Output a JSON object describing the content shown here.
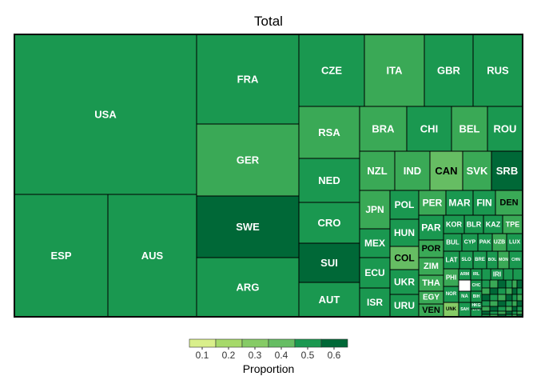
{
  "chart_data": {
    "type": "treemap",
    "title": "Total",
    "legend": {
      "title": "Proportion",
      "ticks": [
        "0.1",
        "0.2",
        "0.3",
        "0.4",
        "0.5",
        "0.6"
      ],
      "bin_colors": [
        "#d9ef8b",
        "#a6d96a",
        "#86cb66",
        "#66bd63",
        "#3aa956",
        "#1a9850",
        "#006837"
      ]
    },
    "cells": [
      {
        "label": "USA",
        "proportion": 0.56
      },
      {
        "label": "ESP",
        "proportion": 0.55
      },
      {
        "label": "AUS",
        "proportion": 0.5
      },
      {
        "label": "FRA",
        "proportion": 0.5
      },
      {
        "label": "GER",
        "proportion": 0.46
      },
      {
        "label": "SWE",
        "proportion": 0.6
      },
      {
        "label": "ARG",
        "proportion": 0.55
      },
      {
        "label": "CZE",
        "proportion": 0.55
      },
      {
        "label": "ITA",
        "proportion": 0.4
      },
      {
        "label": "GBR",
        "proportion": 0.5
      },
      {
        "label": "RUS",
        "proportion": 0.55
      },
      {
        "label": "RSA",
        "proportion": 0.45
      },
      {
        "label": "NED",
        "proportion": 0.52
      },
      {
        "label": "CRO",
        "proportion": 0.58
      },
      {
        "label": "SUI",
        "proportion": 0.63
      },
      {
        "label": "AUT",
        "proportion": 0.5
      },
      {
        "label": "BRA",
        "proportion": 0.48
      },
      {
        "label": "CHI",
        "proportion": 0.56
      },
      {
        "label": "BEL",
        "proportion": 0.42
      },
      {
        "label": "ROU",
        "proportion": 0.5
      },
      {
        "label": "NZL",
        "proportion": 0.48
      },
      {
        "label": "IND",
        "proportion": 0.45
      },
      {
        "label": "CAN",
        "proportion": 0.38
      },
      {
        "label": "SVK",
        "proportion": 0.48
      },
      {
        "label": "SRB",
        "proportion": 0.64
      },
      {
        "label": "JPN",
        "proportion": 0.46
      },
      {
        "label": "POL",
        "proportion": 0.55
      },
      {
        "label": "PER",
        "proportion": 0.45
      },
      {
        "label": "MAR",
        "proportion": 0.5
      },
      {
        "label": "FIN",
        "proportion": 0.5
      },
      {
        "label": "DEN",
        "proportion": 0.4
      },
      {
        "label": "MEX",
        "proportion": 0.52
      },
      {
        "label": "HUN",
        "proportion": 0.55
      },
      {
        "label": "PAR",
        "proportion": 0.58
      },
      {
        "label": "KOR",
        "proportion": 0.5
      },
      {
        "label": "BLR",
        "proportion": 0.55
      },
      {
        "label": "KAZ",
        "proportion": 0.55
      },
      {
        "label": "TPE",
        "proportion": 0.45
      },
      {
        "label": "ECU",
        "proportion": 0.56
      },
      {
        "label": "COL",
        "proportion": 0.38
      },
      {
        "label": "POR",
        "proportion": 0.42
      },
      {
        "label": "BUL",
        "proportion": 0.5
      },
      {
        "label": "CYP",
        "proportion": 0.5
      },
      {
        "label": "PAK",
        "proportion": 0.5
      },
      {
        "label": "UZB",
        "proportion": 0.48
      },
      {
        "label": "LUX",
        "proportion": 0.5
      },
      {
        "label": "ISR",
        "proportion": 0.55
      },
      {
        "label": "UKR",
        "proportion": 0.55
      },
      {
        "label": "ZIM",
        "proportion": 0.45
      },
      {
        "label": "LAT",
        "proportion": 0.52
      },
      {
        "label": "SLO",
        "proportion": 0.55
      },
      {
        "label": "BRE",
        "proportion": 0.5
      },
      {
        "label": "BOL",
        "proportion": 0.5
      },
      {
        "label": "MON",
        "proportion": 0.45
      },
      {
        "label": "CHN",
        "proportion": 0.5
      },
      {
        "label": "URU",
        "proportion": 0.55
      },
      {
        "label": "THA",
        "proportion": 0.48
      },
      {
        "label": "PHI",
        "proportion": 0.48
      },
      {
        "label": "ARM",
        "proportion": 0.55
      },
      {
        "label": "IRL",
        "proportion": 0.5
      },
      {
        "label": "IRI",
        "proportion": 0.55
      },
      {
        "label": "EGY",
        "proportion": 0.46
      },
      {
        "label": "NOR",
        "proportion": 0.5
      },
      {
        "label": "CHC",
        "proportion": 0.5
      },
      {
        "label": "NA",
        "proportion": 0.5
      },
      {
        "label": "BIH",
        "proportion": 0.5
      },
      {
        "label": "VEN",
        "proportion": 0.48
      },
      {
        "label": "UNK",
        "proportion": 0.22
      },
      {
        "label": "SAH",
        "proportion": 0.5
      },
      {
        "label": "LTU",
        "proportion": 0.5
      },
      {
        "label": "HKG",
        "proportion": 0.5
      }
    ]
  }
}
